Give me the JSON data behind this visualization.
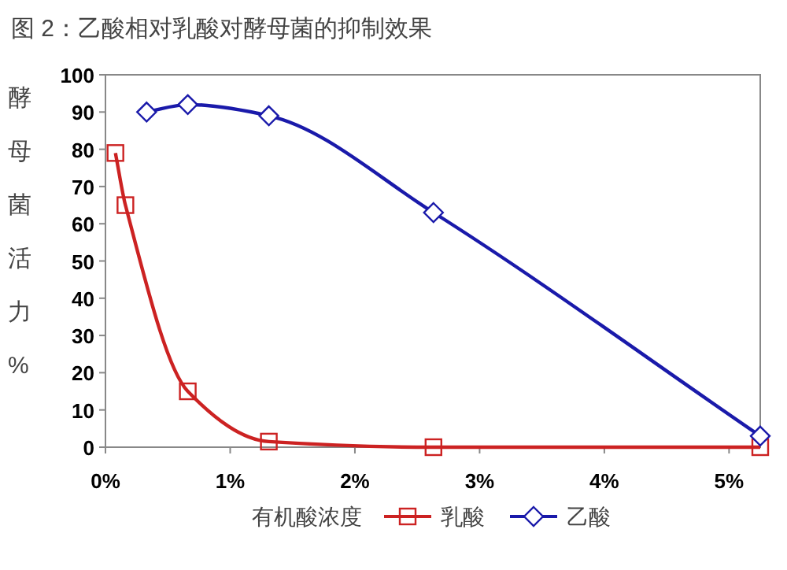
{
  "chart_data": {
    "type": "line",
    "title": "图 2：乙酸相对乳酸对酵母菌的抑制效果",
    "xlabel": "有机酸浓度",
    "ylabel": "酵母菌活力%",
    "series": [
      {
        "name": "乳酸",
        "color": "#cc2222",
        "marker": "square",
        "x": [
          0.08,
          0.16,
          0.66,
          1.31,
          2.63,
          5.25
        ],
        "values": [
          79,
          65,
          15,
          1.5,
          0,
          0
        ]
      },
      {
        "name": "乙酸",
        "color": "#1a1aaa",
        "marker": "diamond",
        "x": [
          0.33,
          0.66,
          1.31,
          2.63,
          5.25
        ],
        "values": [
          90,
          92,
          89,
          63,
          3
        ]
      }
    ],
    "xlim": [
      0,
      5.25
    ],
    "ylim": [
      0,
      100
    ],
    "xticks": [
      {
        "value": 0,
        "label": "0%"
      },
      {
        "value": 1,
        "label": "1%"
      },
      {
        "value": 2,
        "label": "2%"
      },
      {
        "value": 3,
        "label": "3%"
      },
      {
        "value": 4,
        "label": "4%"
      },
      {
        "value": 5,
        "label": "5%"
      }
    ],
    "yticks": [
      0,
      10,
      20,
      30,
      40,
      50,
      60,
      70,
      80,
      90,
      100
    ],
    "grid": false,
    "legend": "bottom"
  }
}
